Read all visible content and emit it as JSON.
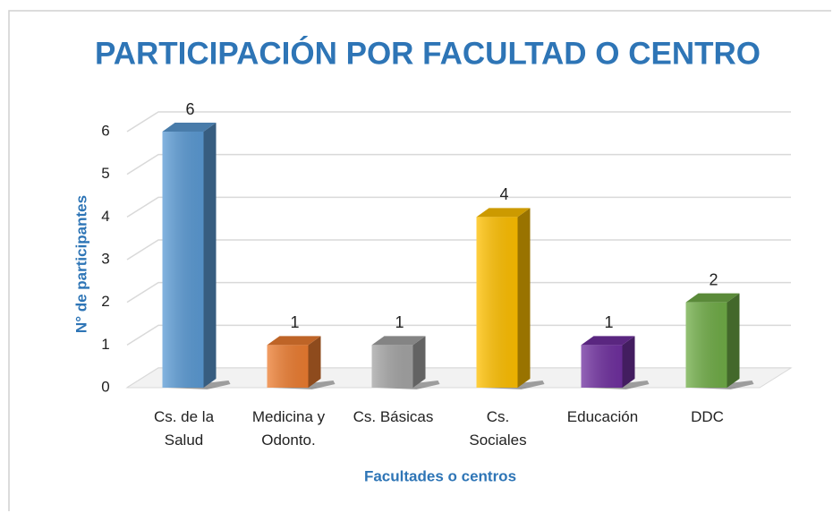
{
  "chart_data": {
    "type": "bar3d",
    "title": "PARTICIPACIÓN POR FACULTAD O CENTRO",
    "x_label": "Facultades o centros",
    "y_label": "N° de participantes",
    "categories": [
      "Cs. de la\nSalud",
      "Medicina y\nOdonto.",
      "Cs. Básicas",
      "Cs.\nSociales",
      "Educación",
      "DDC"
    ],
    "values": [
      6,
      1,
      1,
      4,
      1,
      2
    ],
    "colors": [
      "#5b9bd5",
      "#ed7d31",
      "#a5a5a5",
      "#ffc000",
      "#7030a0",
      "#70ad47"
    ],
    "ylim": [
      0,
      6
    ],
    "yticks": [
      0,
      1,
      2,
      3,
      4,
      5,
      6
    ],
    "grid": true
  }
}
